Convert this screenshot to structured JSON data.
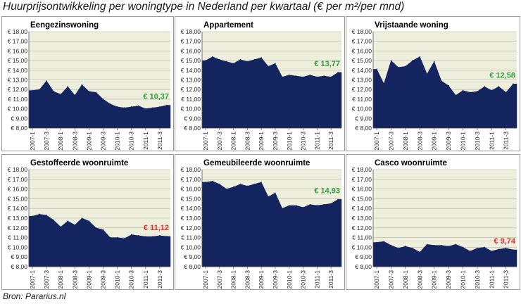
{
  "title": "Huurprijsontwikkeling per woningtype in Nederland per kwartaal (€ per m²/per mnd)",
  "source": "Bron: Pararius.nl",
  "colors": {
    "area": "#14245f",
    "plot_bg": "#eeeedd",
    "grid": "#b4b4a0",
    "positive": "#2e9e3f",
    "negative": "#e03030"
  },
  "chart_data": [
    {
      "type": "area",
      "title": "Eengezinswoning",
      "ylim": [
        8,
        18
      ],
      "yticks": [
        "€ 8,00",
        "€ 9,00",
        "€ 10,00",
        "€ 11,00",
        "€ 12,00",
        "€ 13,00",
        "€ 14,00",
        "€ 15,00",
        "€ 16,00",
        "€ 17,00",
        "€ 18,00"
      ],
      "xticks": [
        "2007-1",
        "2007-3",
        "2008-1",
        "2008-3",
        "2009-1",
        "2009-3",
        "2010-1",
        "2010-3",
        "2011-1",
        "2011-3"
      ],
      "values": [
        11.9,
        12.0,
        12.9,
        11.8,
        11.5,
        12.3,
        11.4,
        12.5,
        11.8,
        11.7,
        11.0,
        10.5,
        10.2,
        10.1,
        10.2,
        10.3,
        10.0,
        10.1,
        10.2,
        10.37
      ],
      "annotation": "€ 10,37",
      "annotation_sentiment": "positive",
      "grid": true
    },
    {
      "type": "area",
      "title": "Appartement",
      "ylim": [
        8,
        18
      ],
      "yticks": [
        "€ 8,00",
        "€ 9,00",
        "€ 10,00",
        "€ 11,00",
        "€ 12,00",
        "€ 13,00",
        "€ 14,00",
        "€ 15,00",
        "€ 16,00",
        "€ 17,00",
        "€ 18,00"
      ],
      "xticks": [
        "2007-1",
        "2007-3",
        "2008-1",
        "2008-3",
        "2009-1",
        "2009-3",
        "2010-1",
        "2010-3",
        "2011-1",
        "2011-3"
      ],
      "values": [
        15.0,
        15.4,
        15.1,
        14.9,
        14.7,
        15.1,
        14.9,
        15.1,
        15.3,
        14.4,
        14.7,
        13.3,
        13.5,
        13.4,
        13.3,
        13.5,
        13.3,
        13.4,
        13.3,
        13.77
      ],
      "annotation": "€ 13,77",
      "annotation_sentiment": "positive",
      "grid": true
    },
    {
      "type": "area",
      "title": "Vrijstaande woning",
      "ylim": [
        8,
        18
      ],
      "yticks": [
        "€ 8,00",
        "€ 9,00",
        "€ 10,00",
        "€ 11,00",
        "€ 12,00",
        "€ 13,00",
        "€ 14,00",
        "€ 15,00",
        "€ 16,00",
        "€ 17,00",
        "€ 18,00"
      ],
      "xticks": [
        "2007-1",
        "2007-3",
        "2008-1",
        "2008-3",
        "2009-1",
        "2009-3",
        "2010-1",
        "2010-3",
        "2011-1",
        "2011-3"
      ],
      "values": [
        14.1,
        12.6,
        15.0,
        14.3,
        14.4,
        15.0,
        15.4,
        13.6,
        14.9,
        12.9,
        12.4,
        11.4,
        11.9,
        11.7,
        11.8,
        12.3,
        11.9,
        12.3,
        11.7,
        12.58
      ],
      "annotation": "€ 12,58",
      "annotation_sentiment": "positive",
      "grid": true
    },
    {
      "type": "area",
      "title": "Gestoffeerde woonruimte",
      "ylim": [
        8,
        18
      ],
      "yticks": [
        "€ 8,00",
        "€ 9,00",
        "€ 10,00",
        "€ 11,00",
        "€ 12,00",
        "€ 13,00",
        "€ 14,00",
        "€ 15,00",
        "€ 16,00",
        "€ 17,00",
        "€ 18,00"
      ],
      "xticks": [
        "2007-1",
        "2007-3",
        "2008-1",
        "2008-3",
        "2009-1",
        "2009-3",
        "2010-1",
        "2010-3",
        "2011-1",
        "2011-3"
      ],
      "values": [
        13.2,
        13.4,
        13.3,
        12.8,
        12.1,
        12.7,
        12.3,
        13.0,
        12.7,
        12.0,
        11.8,
        11.0,
        11.0,
        10.9,
        11.3,
        11.2,
        11.1,
        11.1,
        11.2,
        11.12
      ],
      "annotation": "€ 11,12",
      "annotation_sentiment": "negative",
      "grid": true
    },
    {
      "type": "area",
      "title": "Gemeubileerde woonruimte",
      "ylim": [
        8,
        18
      ],
      "yticks": [
        "€ 8,00",
        "€ 9,00",
        "€ 10,00",
        "€ 11,00",
        "€ 12,00",
        "€ 13,00",
        "€ 14,00",
        "€ 15,00",
        "€ 16,00",
        "€ 17,00",
        "€ 18,00"
      ],
      "xticks": [
        "2007-1",
        "2007-3",
        "2008-1",
        "2008-3",
        "2009-1",
        "2009-3",
        "2010-1",
        "2010-3",
        "2011-1",
        "2011-3"
      ],
      "values": [
        16.7,
        16.8,
        16.5,
        16.0,
        16.2,
        16.5,
        16.3,
        16.5,
        16.7,
        15.2,
        15.6,
        14.0,
        14.3,
        14.3,
        14.1,
        14.4,
        14.3,
        14.4,
        14.5,
        14.93
      ],
      "annotation": "€ 14,93",
      "annotation_sentiment": "positive",
      "grid": true
    },
    {
      "type": "area",
      "title": "Casco woonruimte",
      "ylim": [
        8,
        18
      ],
      "yticks": [
        "€ 8,00",
        "€ 9,00",
        "€ 10,00",
        "€ 11,00",
        "€ 12,00",
        "€ 13,00",
        "€ 14,00",
        "€ 15,00",
        "€ 16,00",
        "€ 17,00",
        "€ 18,00"
      ],
      "xticks": [
        "2007-1",
        "2007-3",
        "2008-1",
        "2008-3",
        "2009-1",
        "2009-3",
        "2010-1",
        "2010-3",
        "2011-1",
        "2011-3"
      ],
      "values": [
        10.5,
        10.6,
        10.2,
        9.9,
        10.1,
        9.9,
        9.5,
        10.3,
        10.2,
        10.2,
        10.1,
        10.3,
        10.0,
        9.6,
        9.9,
        10.0,
        9.6,
        9.8,
        9.9,
        9.74
      ],
      "annotation": "€ 9,74",
      "annotation_sentiment": "negative",
      "grid": true
    }
  ]
}
